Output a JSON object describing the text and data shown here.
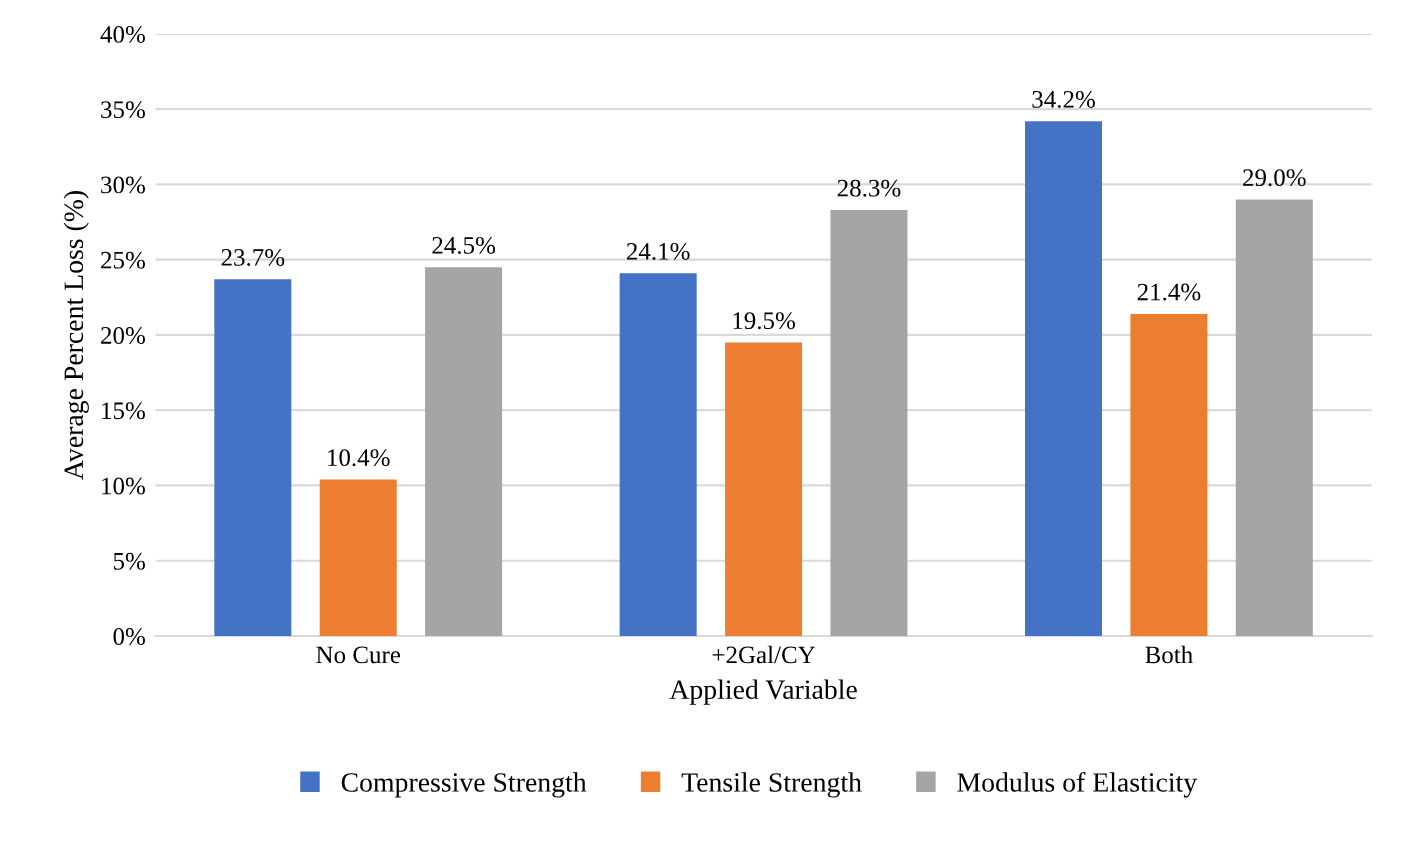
{
  "chart_data": {
    "type": "bar",
    "xlabel": "Applied Variable",
    "ylabel": "Average Percent Loss (%)",
    "categories": [
      "No Cure",
      "+2Gal/CY",
      "Both"
    ],
    "series": [
      {
        "name": "Compressive Strength",
        "color": "#4472c4",
        "values": [
          23.7,
          24.1,
          34.2
        ],
        "value_labels": [
          "23.7%",
          "24.1%",
          "34.2%"
        ]
      },
      {
        "name": "Tensile Strength",
        "color": "#ed7d31",
        "values": [
          10.4,
          19.5,
          21.4
        ],
        "value_labels": [
          "10.4%",
          "19.5%",
          "21.4%"
        ]
      },
      {
        "name": "Modulus of Elasticity",
        "color": "#a5a5a5",
        "values": [
          24.5,
          28.3,
          29.0
        ],
        "value_labels": [
          "24.5%",
          "28.3%",
          "29.0%"
        ]
      }
    ],
    "ylim": [
      0,
      40
    ],
    "yticks": [
      {
        "value": 0,
        "label": "0%"
      },
      {
        "value": 5,
        "label": "5%"
      },
      {
        "value": 10,
        "label": "10%"
      },
      {
        "value": 15,
        "label": "15%"
      },
      {
        "value": 20,
        "label": "20%"
      },
      {
        "value": 25,
        "label": "25%"
      },
      {
        "value": 30,
        "label": "30%"
      },
      {
        "value": 35,
        "label": "35%"
      },
      {
        "value": 40,
        "label": "40%"
      }
    ],
    "grid": "y",
    "legend": "bottom"
  }
}
